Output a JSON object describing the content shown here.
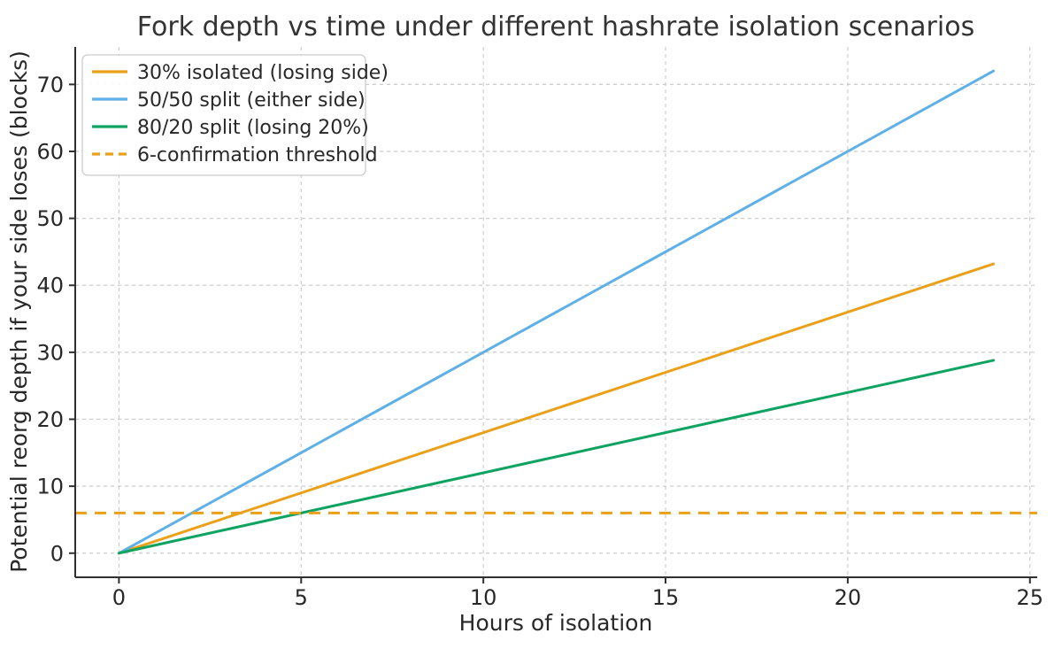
{
  "figure": {
    "title": "Fork depth vs time under different hashrate isolation scenarios",
    "xlabel": "Hours of isolation",
    "ylabel": "Potential reorg depth if your side loses (blocks)"
  },
  "chart_data": {
    "type": "line",
    "title": "Fork depth vs time under different hashrate isolation scenarios",
    "xlabel": "Hours of isolation",
    "ylabel": "Potential reorg depth if your side loses (blocks)",
    "xlim": [
      -1.2,
      25.2
    ],
    "ylim": [
      -3.6,
      75.6
    ],
    "xticks": [
      0,
      5,
      10,
      15,
      20,
      25
    ],
    "yticks": [
      0,
      10,
      20,
      30,
      40,
      50,
      60,
      70
    ],
    "grid": true,
    "grid_style": "dashed",
    "legend_position": "upper-left",
    "series": [
      {
        "name": "30% isolated (losing side)",
        "color": "#EBA019",
        "style": "solid",
        "x": [
          0,
          24
        ],
        "y": [
          0,
          43.2
        ]
      },
      {
        "name": "50/50 split (either side)",
        "color": "#5FB0E6",
        "style": "solid",
        "x": [
          0,
          24
        ],
        "y": [
          0,
          72
        ]
      },
      {
        "name": "80/20 split (losing 20%)",
        "color": "#0FA361",
        "style": "solid",
        "x": [
          0,
          24
        ],
        "y": [
          0,
          28.8
        ]
      }
    ],
    "threshold": {
      "name": "6-confirmation threshold",
      "color": "#EBA019",
      "style": "dashed",
      "y": 6
    }
  },
  "colors": {
    "background": "#ffffff",
    "grid": "#cccccc",
    "spine": "#303030",
    "text": "#282828",
    "legend_border": "#cccccc",
    "legend_background": "#ffffff"
  }
}
